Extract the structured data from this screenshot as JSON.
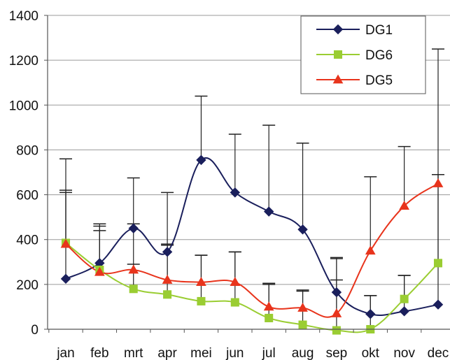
{
  "chart_data": {
    "type": "line",
    "title": "",
    "xlabel": "",
    "ylabel": "",
    "categories": [
      "jan",
      "feb",
      "mrt",
      "apr",
      "mei",
      "jun",
      "jul",
      "aug",
      "sep",
      "okt",
      "nov",
      "dec"
    ],
    "ylim": [
      0,
      1400
    ],
    "yticks": [
      "0",
      "200",
      "400",
      "600",
      "800",
      "1000",
      "1200",
      "1400"
    ],
    "grid": "horizontal",
    "legend_position": "top-right",
    "series": [
      {
        "name": "DG1",
        "color": "#1a1f5c",
        "marker": "diamond",
        "smooth": true,
        "values": [
          225,
          295,
          450,
          345,
          755,
          610,
          525,
          445,
          165,
          68,
          80,
          110
        ],
        "error_upper": [
          760,
          470,
          675,
          610,
          1040,
          870,
          910,
          830,
          320,
          150,
          240,
          1250
        ]
      },
      {
        "name": "DG6",
        "color": "#9acd32",
        "marker": "square",
        "smooth": true,
        "values": [
          385,
          265,
          180,
          155,
          125,
          120,
          50,
          20,
          -5,
          0,
          135,
          295
        ],
        "error_upper": [
          620,
          460,
          290,
          380,
          330,
          345,
          205,
          175,
          220,
          150,
          240,
          690
        ]
      },
      {
        "name": "DG5",
        "color": "#e8341c",
        "marker": "triangle",
        "smooth": true,
        "values": [
          380,
          255,
          265,
          220,
          210,
          210,
          100,
          95,
          70,
          350,
          550,
          650
        ],
        "error_upper": [
          610,
          440,
          470,
          375,
          330,
          345,
          200,
          170,
          315,
          680,
          815,
          690
        ]
      }
    ]
  }
}
